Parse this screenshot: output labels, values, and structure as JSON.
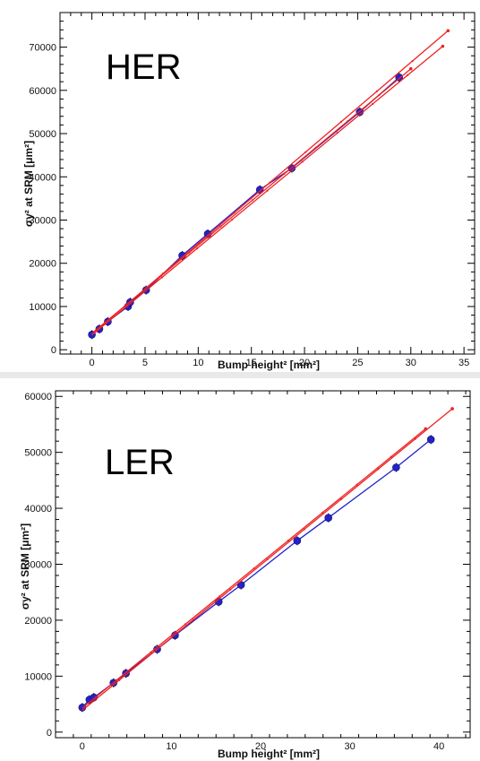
{
  "colors": {
    "measurement": "#2222cc",
    "model": "#ee2222",
    "axis": "#000000",
    "background": "#ffffff"
  },
  "chart_data": [
    {
      "type": "scatter",
      "title": "HER",
      "xlabel": "Bump height² [mm²]",
      "ylabel": "σy² at SRM [μm²]",
      "xlim": [
        -3,
        36
      ],
      "ylim": [
        -1000,
        78000
      ],
      "xticks": [
        0,
        5,
        10,
        15,
        20,
        25,
        30,
        35
      ],
      "yticks": [
        0,
        10000,
        20000,
        30000,
        40000,
        50000,
        60000,
        70000
      ],
      "grid": false,
      "series": [
        {
          "style": "points-line",
          "color": "#2222cc",
          "x": [
            0.0,
            0.7,
            1.5,
            3.4,
            3.6,
            5.1,
            8.5,
            10.9,
            15.8,
            18.8,
            25.2,
            28.9
          ],
          "y": [
            3500,
            4800,
            6500,
            10000,
            11000,
            13800,
            21800,
            26800,
            37000,
            42000,
            55000,
            63000
          ]
        },
        {
          "style": "line",
          "color": "#ee2222",
          "x": [
            0.0,
            33.5
          ],
          "y": [
            3600,
            73800
          ]
        },
        {
          "style": "line",
          "color": "#ee2222",
          "x": [
            0.0,
            33.0
          ],
          "y": [
            3400,
            70200
          ]
        },
        {
          "style": "line",
          "color": "#ee2222",
          "x": [
            0.2,
            30.0
          ],
          "y": [
            4200,
            65000
          ]
        }
      ]
    },
    {
      "type": "scatter",
      "title": "LER",
      "xlabel": "Bump height² [mm²]",
      "ylabel": "σy² at SRM [μm²]",
      "xlim": [
        -3,
        43.5
      ],
      "ylim": [
        -1000,
        61000
      ],
      "xticks": [
        0,
        10,
        20,
        30,
        40
      ],
      "yticks": [
        0,
        10000,
        20000,
        30000,
        40000,
        50000,
        60000
      ],
      "grid": false,
      "series": [
        {
          "style": "points-line",
          "color": "#2222cc",
          "x": [
            0.0,
            0.8,
            1.3,
            3.5,
            4.9,
            8.4,
            10.4,
            15.3,
            17.8,
            24.1,
            27.6,
            35.2,
            39.1
          ],
          "y": [
            4400,
            5800,
            6200,
            8800,
            10500,
            14800,
            17300,
            23300,
            26300,
            34200,
            38300,
            47300,
            52300
          ]
        },
        {
          "style": "line",
          "color": "#ee2222",
          "x": [
            0.0,
            41.5
          ],
          "y": [
            3900,
            57800
          ]
        },
        {
          "style": "line",
          "color": "#ee2222",
          "x": [
            0.0,
            38.5
          ],
          "y": [
            4300,
            54200
          ]
        }
      ]
    }
  ]
}
